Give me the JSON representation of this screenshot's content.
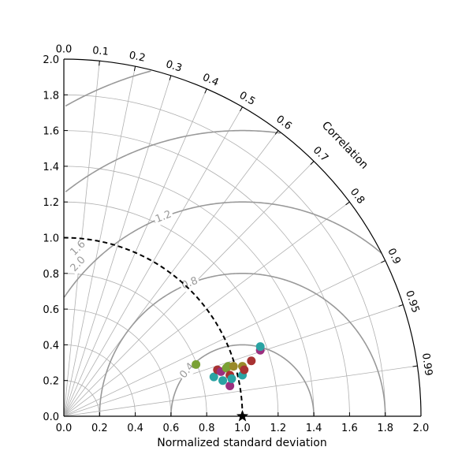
{
  "chart_data": {
    "type": "scatter",
    "subtype": "taylor-diagram",
    "xlabel": "Normalized standard deviation",
    "correlation_label": "Correlation",
    "std_range": [
      0,
      2.0
    ],
    "std_ticks": [
      "0.0",
      "0.2",
      "0.4",
      "0.6",
      "0.8",
      "1.0",
      "1.2",
      "1.4",
      "1.6",
      "1.8",
      "2.0"
    ],
    "std_tick_values": [
      0,
      0.2,
      0.4,
      0.6,
      0.8,
      1.0,
      1.2,
      1.4,
      1.6,
      1.8,
      2.0
    ],
    "corr_ticks": [
      "0.0",
      "0.1",
      "0.2",
      "0.3",
      "0.4",
      "0.5",
      "0.6",
      "0.7",
      "0.8",
      "0.9",
      "0.95",
      "0.99"
    ],
    "corr_tick_values": [
      0,
      0.1,
      0.2,
      0.3,
      0.4,
      0.5,
      0.6,
      0.7,
      0.8,
      0.9,
      0.95,
      0.99
    ],
    "std_grid_arcs": [
      0.2,
      0.4,
      0.6,
      0.8,
      1.0,
      1.2,
      1.4,
      1.6,
      1.8
    ],
    "rms_contours": [
      0.4,
      0.8,
      1.2,
      1.6,
      2.0
    ],
    "rms_labels": [
      "0.4",
      "0.8",
      "1.2",
      "1.6",
      "2.0"
    ],
    "reference": {
      "std": 1.0,
      "label": "reference",
      "marker": "star"
    },
    "colors": {
      "grid": "#b0b0b0",
      "rms": "#999999",
      "reference_arc": "#000000"
    },
    "points": [
      {
        "x": 0.74,
        "y": 0.29,
        "color": "#7aa135"
      },
      {
        "x": 0.84,
        "y": 0.22,
        "color": "#2aa3a3"
      },
      {
        "x": 0.86,
        "y": 0.26,
        "color": "#a83232"
      },
      {
        "x": 0.88,
        "y": 0.25,
        "color": "#9b2f7f"
      },
      {
        "x": 0.89,
        "y": 0.2,
        "color": "#2aa3a3"
      },
      {
        "x": 0.91,
        "y": 0.27,
        "color": "#7aa135"
      },
      {
        "x": 0.92,
        "y": 0.28,
        "color": "#7aa135"
      },
      {
        "x": 0.93,
        "y": 0.23,
        "color": "#a83232"
      },
      {
        "x": 0.93,
        "y": 0.17,
        "color": "#9b2f7f"
      },
      {
        "x": 0.94,
        "y": 0.21,
        "color": "#2aa3a3"
      },
      {
        "x": 0.95,
        "y": 0.28,
        "color": "#9a8a2a"
      },
      {
        "x": 1.0,
        "y": 0.28,
        "color": "#9a8a2a"
      },
      {
        "x": 1.0,
        "y": 0.23,
        "color": "#2aa3a3"
      },
      {
        "x": 1.01,
        "y": 0.26,
        "color": "#a83232"
      },
      {
        "x": 1.05,
        "y": 0.31,
        "color": "#a83232"
      },
      {
        "x": 1.1,
        "y": 0.37,
        "color": "#9b2f7f"
      },
      {
        "x": 1.1,
        "y": 0.39,
        "color": "#2aa3a3"
      }
    ]
  }
}
